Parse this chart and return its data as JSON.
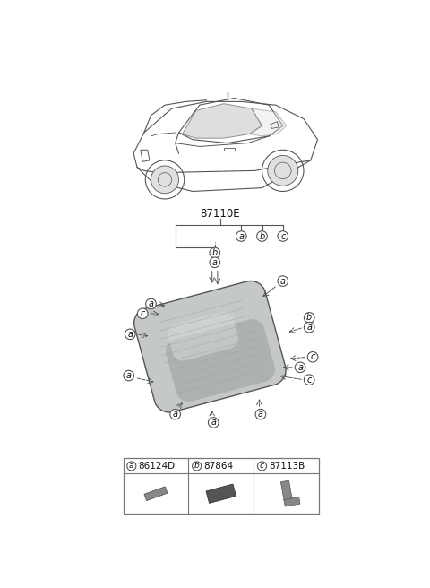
{
  "part_number_label": "87110E",
  "background_color": "#ffffff",
  "legend_items": [
    {
      "label": "a",
      "part_num": "86124D"
    },
    {
      "label": "b",
      "part_num": "87864"
    },
    {
      "label": "c",
      "part_num": "87113B"
    }
  ],
  "glass_color_main": "#c8cbc8",
  "glass_color_dark": "#a0a4a0",
  "line_color": "#555555",
  "text_color": "#111111",
  "callout_bg": "#ffffff",
  "callout_stroke": "#555555"
}
